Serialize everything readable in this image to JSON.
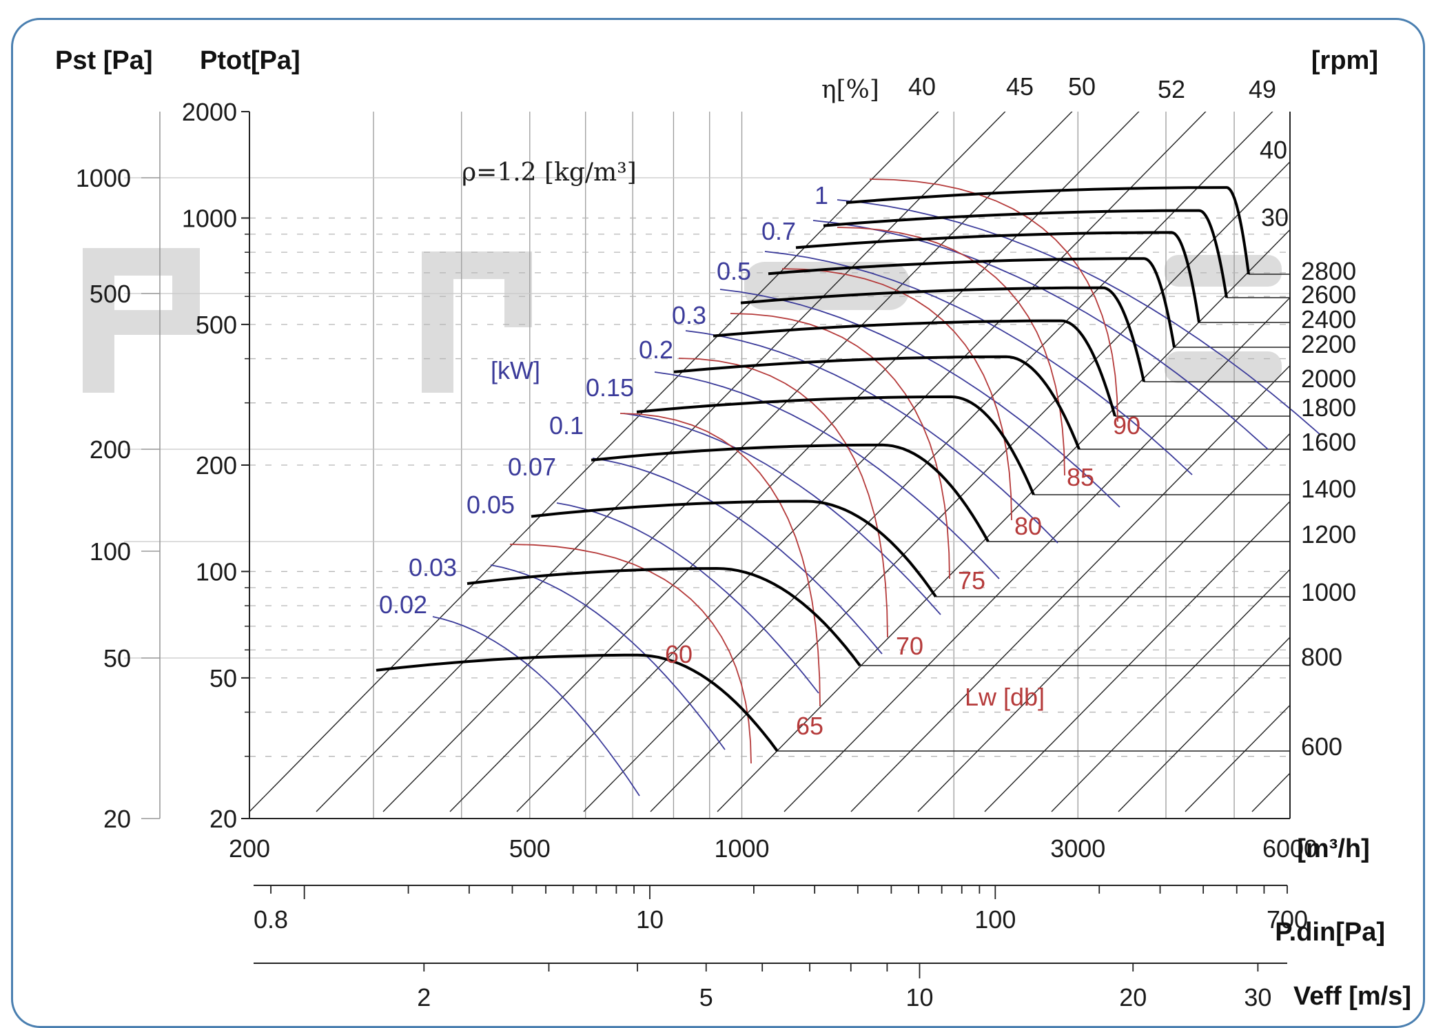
{
  "chart_data": {
    "type": "line",
    "x_axis": {
      "label": "[m³/h]",
      "scale": "log",
      "range": [
        200,
        6000
      ],
      "tick_labels": [
        {
          "value": 200,
          "text": "200"
        },
        {
          "value": 500,
          "text": "500"
        },
        {
          "value": 1000,
          "text": "1000"
        },
        {
          "value": 3000,
          "text": "3000"
        },
        {
          "value": 6000,
          "text": "6000"
        }
      ]
    },
    "pdin_axis": {
      "label": "P.din[Pa]",
      "scale": "log",
      "tick_labels": [
        "0.8",
        "10",
        "100",
        "700"
      ],
      "tick_values": [
        0.8,
        10,
        100,
        700
      ]
    },
    "veff_axis": {
      "label": "Veff [m/s]",
      "scale": "log",
      "tick_labels": [
        "2",
        "5",
        "10",
        "20",
        "30"
      ],
      "tick_values": [
        2,
        5,
        10,
        20,
        30
      ]
    },
    "ptot_axis": {
      "label": "Ptot[Pa]",
      "scale": "log",
      "range": [
        20,
        2000
      ],
      "tick_labels": [
        "2000",
        "1000",
        "500",
        "200",
        "100",
        "50",
        "20"
      ],
      "tick_values": [
        2000,
        1000,
        500,
        200,
        100,
        50,
        20
      ]
    },
    "pst_axis": {
      "label": "Pst [Pa]",
      "tick_labels": [
        "1000",
        "500",
        "200",
        "100",
        "50",
        "20"
      ],
      "tick_values": [
        1000,
        500,
        200,
        100,
        50,
        20
      ]
    },
    "rpm_axis": {
      "label": "[rpm]",
      "tick_labels": [
        "2800",
        "2600",
        "2400",
        "2200",
        "2000",
        "1800",
        "1600",
        "1400",
        "1200",
        "1000",
        "800",
        "600"
      ]
    },
    "efficiency_labels": {
      "label": "η[%]",
      "values": [
        "40",
        "45",
        "50",
        "52",
        "49",
        "40",
        "30"
      ]
    },
    "power_labels": {
      "label": "[kW]",
      "values": [
        "1",
        "0.7",
        "0.5",
        "0.3",
        "0.2",
        "0.15",
        "0.1",
        "0.07",
        "0.05",
        "0.03",
        "0.02"
      ]
    },
    "noise_labels": {
      "label": "Lw [db]",
      "values": [
        "60",
        "65",
        "70",
        "75",
        "80",
        "85",
        "90"
      ]
    },
    "density_note": "ρ=1.2 [kg/m³]",
    "series": [
      {
        "name": "600",
        "peak_ptot": 58
      },
      {
        "name": "800",
        "peak_ptot": 102
      },
      {
        "name": "1000",
        "peak_ptot": 158
      },
      {
        "name": "1200",
        "peak_ptot": 228
      },
      {
        "name": "1400",
        "peak_ptot": 312
      },
      {
        "name": "1600",
        "peak_ptot": 405
      },
      {
        "name": "1800",
        "peak_ptot": 512
      },
      {
        "name": "2000",
        "peak_ptot": 635
      },
      {
        "name": "2200",
        "peak_ptot": 768
      },
      {
        "name": "2400",
        "peak_ptot": 910
      },
      {
        "name": "2600",
        "peak_ptot": 1050
      },
      {
        "name": "2800",
        "peak_ptot": 1220
      }
    ],
    "colors": {
      "rpm_curve": "#000000",
      "power_curve": "#3b3b9a",
      "noise_curve": "#b53a3a",
      "grid": "#9a9a9a",
      "frame": "#4a7fb0",
      "watermark": "#dcdcdc"
    },
    "grid": true
  }
}
